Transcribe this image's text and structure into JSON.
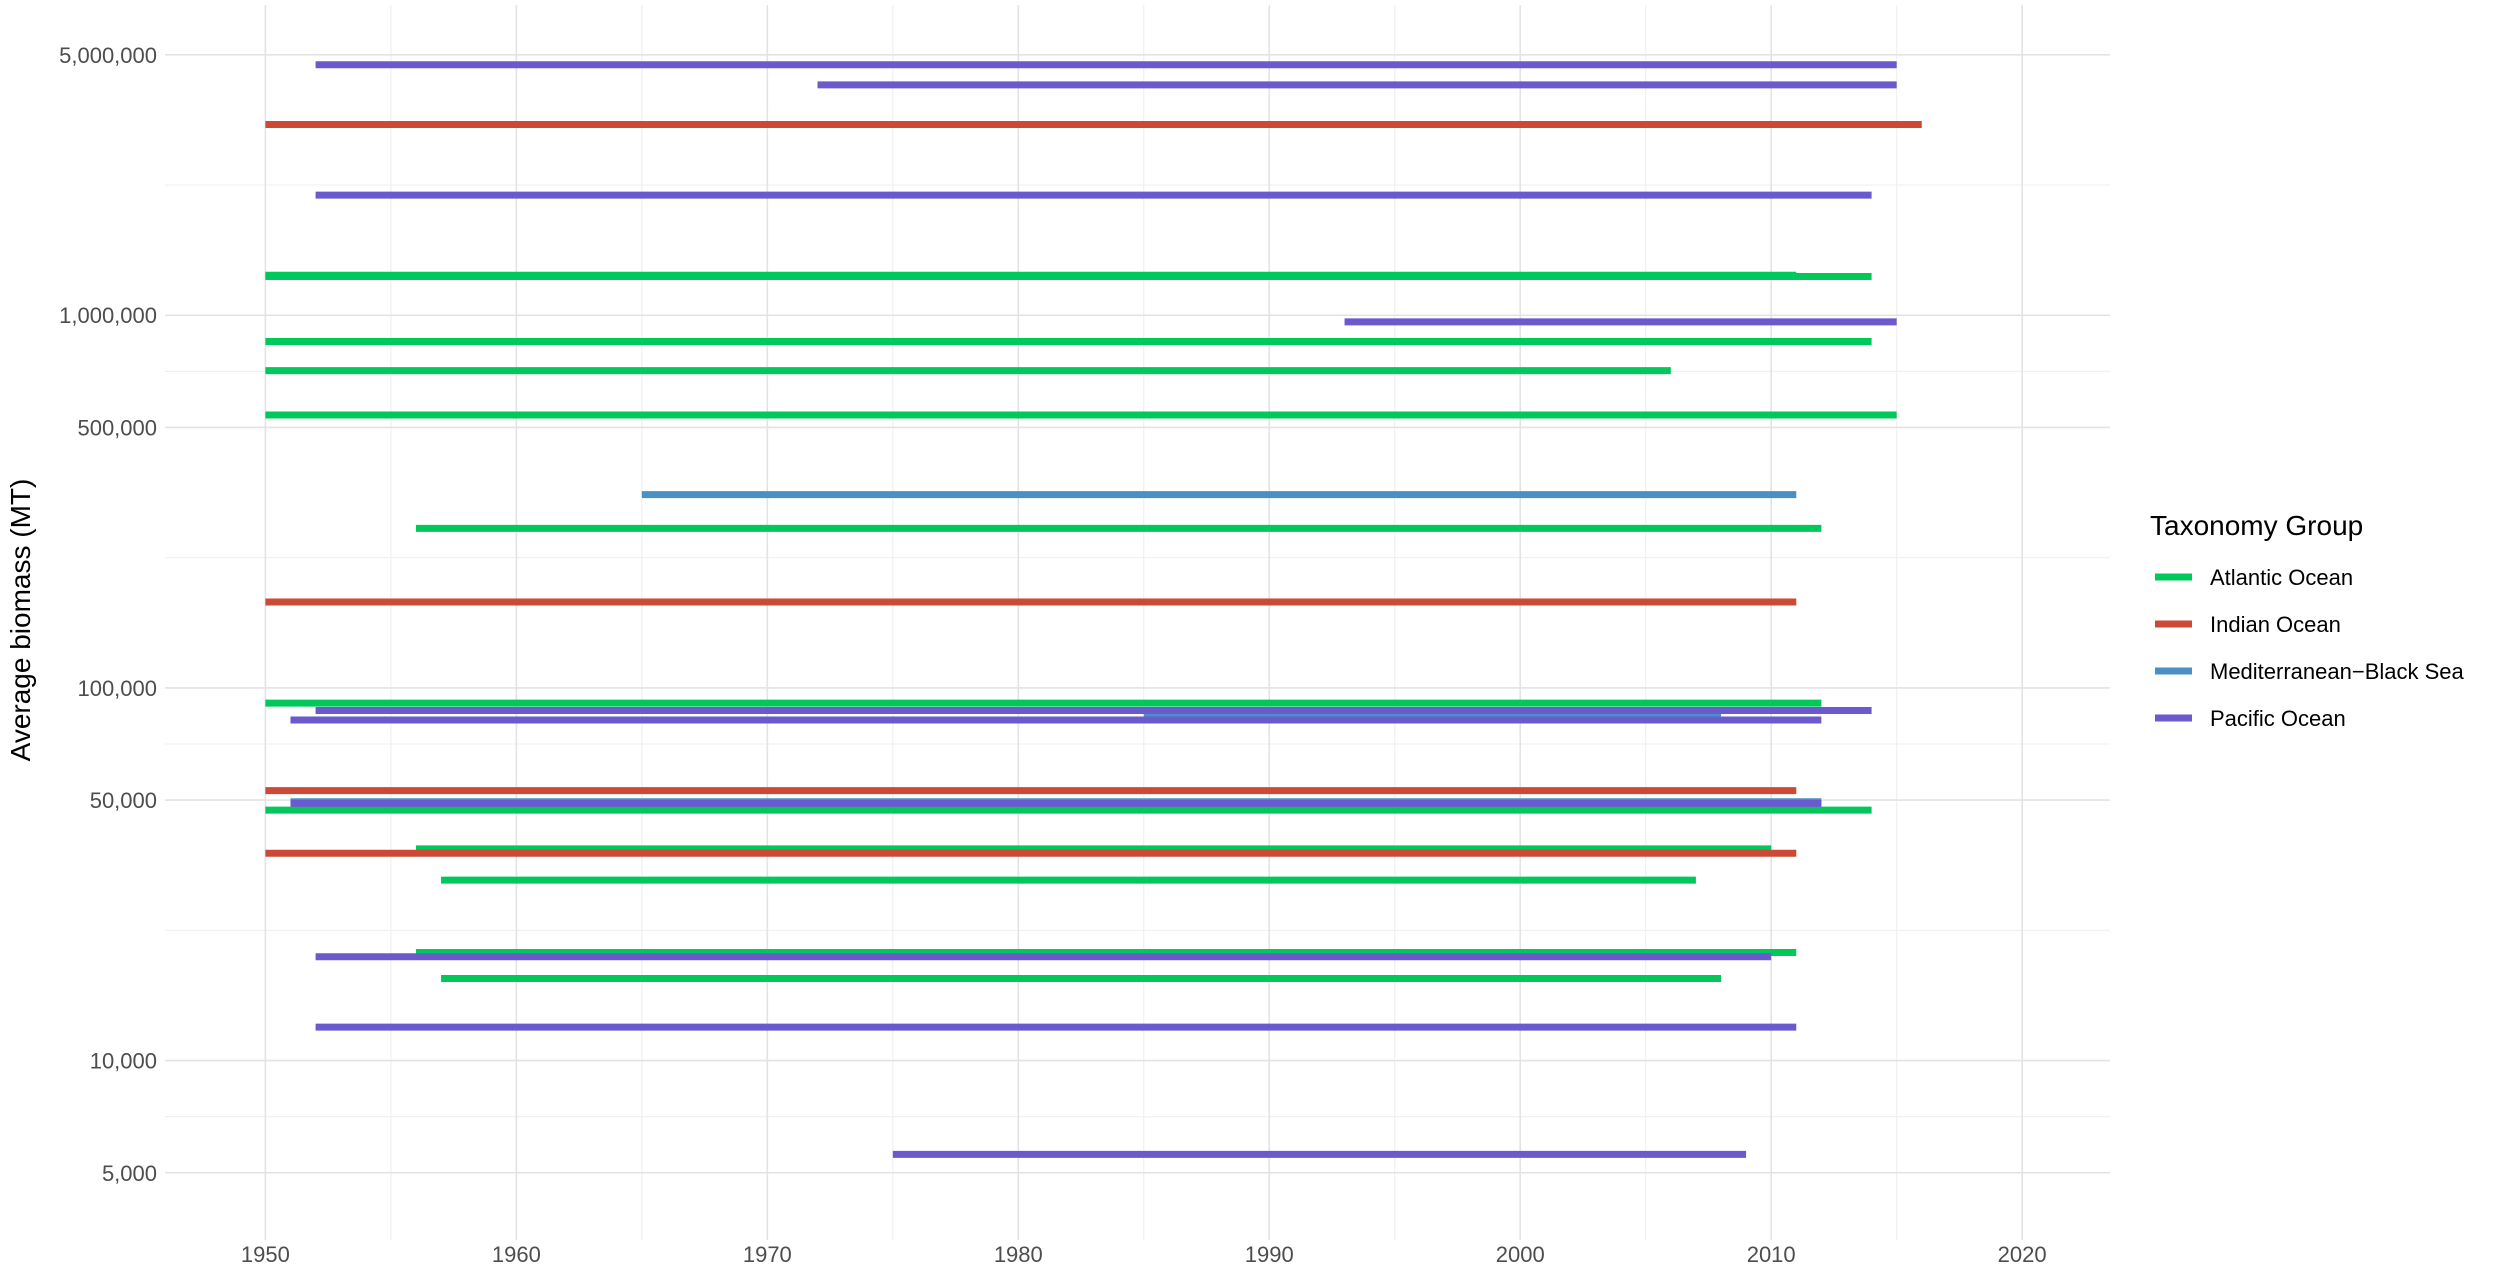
{
  "chart_data": {
    "type": "line",
    "title": "",
    "xlabel": "",
    "ylabel": "Average biomass (MT)",
    "y_scale": "log10",
    "xlim": [
      1946,
      2023.5
    ],
    "ylim": [
      3300,
      6800000
    ],
    "x_ticks": [
      1950,
      1960,
      1970,
      1980,
      1990,
      2000,
      2010,
      2020
    ],
    "x_tick_labels": [
      "1950",
      "1960",
      "1970",
      "1980",
      "1990",
      "2000",
      "2010",
      "2020"
    ],
    "y_ticks": [
      5000,
      10000,
      50000,
      100000,
      500000,
      1000000,
      5000000
    ],
    "y_tick_labels": [
      "5,000",
      "10,000",
      "50,000",
      "100,000",
      "500,000",
      "1,000,000",
      "5,000,000"
    ],
    "grid": true,
    "legend": {
      "title": "Taxonomy Group",
      "position": "right",
      "entries": [
        {
          "label": "Atlantic Ocean",
          "color": "#00C85A"
        },
        {
          "label": "Indian Ocean",
          "color": "#CC4A35"
        },
        {
          "label": "Mediterranean−Black Sea",
          "color": "#4A90C4"
        },
        {
          "label": "Pacific Ocean",
          "color": "#6A5ACD"
        }
      ]
    },
    "series": [
      {
        "group": "Atlantic Ocean",
        "color": "#00C85A",
        "segments": [
          {
            "start": 1950,
            "end": 2011,
            "y": 1280000
          },
          {
            "start": 1950,
            "end": 2014,
            "y": 1270000
          },
          {
            "start": 1950,
            "end": 2014,
            "y": 850000
          },
          {
            "start": 1950,
            "end": 2006,
            "y": 710000
          },
          {
            "start": 1950,
            "end": 2015,
            "y": 540000
          },
          {
            "start": 1956,
            "end": 2012,
            "y": 268000
          },
          {
            "start": 1950,
            "end": 2012,
            "y": 91000
          },
          {
            "start": 1950,
            "end": 2014,
            "y": 47000
          },
          {
            "start": 1956,
            "end": 2010,
            "y": 37000
          },
          {
            "start": 1957,
            "end": 2007,
            "y": 30500
          },
          {
            "start": 1956,
            "end": 2011,
            "y": 19500
          },
          {
            "start": 1957,
            "end": 2008,
            "y": 16600
          }
        ]
      },
      {
        "group": "Indian Ocean",
        "color": "#CC4A35",
        "segments": [
          {
            "start": 1950,
            "end": 2016,
            "y": 3250000
          },
          {
            "start": 1950,
            "end": 2011,
            "y": 170000
          },
          {
            "start": 1950,
            "end": 2011,
            "y": 53000
          },
          {
            "start": 1950,
            "end": 2011,
            "y": 36000
          }
        ]
      },
      {
        "group": "Mediterranean−Black Sea",
        "color": "#4A90C4",
        "segments": [
          {
            "start": 1965,
            "end": 2011,
            "y": 330000
          },
          {
            "start": 1985,
            "end": 2008,
            "y": 84000
          },
          {
            "start": 1951,
            "end": 2012,
            "y": 49500
          }
        ]
      },
      {
        "group": "Pacific Ocean",
        "color": "#6A5ACD",
        "segments": [
          {
            "start": 1952,
            "end": 2015,
            "y": 4700000
          },
          {
            "start": 1972,
            "end": 2015,
            "y": 4150000
          },
          {
            "start": 1952,
            "end": 2014,
            "y": 2100000
          },
          {
            "start": 1993,
            "end": 2015,
            "y": 960000
          },
          {
            "start": 1952,
            "end": 2014,
            "y": 87000
          },
          {
            "start": 1951,
            "end": 2012,
            "y": 82000
          },
          {
            "start": 1951,
            "end": 2012,
            "y": 49000
          },
          {
            "start": 1952,
            "end": 2010,
            "y": 19000
          },
          {
            "start": 1952,
            "end": 2011,
            "y": 12300
          },
          {
            "start": 1975,
            "end": 2009,
            "y": 5600
          }
        ]
      }
    ]
  }
}
